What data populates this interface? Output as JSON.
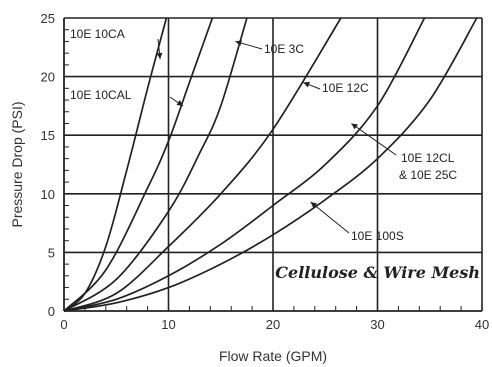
{
  "chart_data": {
    "type": "line",
    "title": "",
    "xlabel": "Flow Rate (GPM)",
    "ylabel": "Pressure Drop (PSI)",
    "xlim": [
      0,
      40
    ],
    "ylim": [
      0,
      25
    ],
    "xticks": [
      0,
      10,
      20,
      30,
      40
    ],
    "yticks": [
      0,
      5,
      10,
      15,
      20,
      25
    ],
    "grid": true,
    "annotation": "Cellulose & Wire Mesh",
    "series": [
      {
        "name": "10E 10CA",
        "x": [
          0,
          2,
          4,
          6,
          8,
          9.8
        ],
        "y": [
          0,
          1.5,
          5.5,
          12,
          19,
          25
        ]
      },
      {
        "name": "10E 10CAL",
        "x": [
          0,
          4,
          8,
          10,
          12,
          14.2
        ],
        "y": [
          0,
          3.5,
          10.5,
          14.5,
          19.5,
          25
        ]
      },
      {
        "name": "10E 3C",
        "x": [
          0,
          5,
          10,
          13,
          15,
          17.5
        ],
        "y": [
          0,
          2.7,
          8.5,
          13.5,
          17.5,
          25
        ]
      },
      {
        "name": "10E 12C",
        "x": [
          0,
          5,
          10,
          15,
          20,
          26.5
        ],
        "y": [
          0,
          1.5,
          5.5,
          10,
          15.5,
          25
        ]
      },
      {
        "name": "10E 12CL & 10E 25C",
        "x": [
          0,
          5,
          10,
          15,
          20,
          25,
          30,
          34.5
        ],
        "y": [
          0,
          1,
          3,
          5.7,
          9,
          12.5,
          17.5,
          25
        ]
      },
      {
        "name": "10E 100S",
        "x": [
          0,
          5,
          10,
          15,
          20,
          25,
          30,
          35,
          39.5
        ],
        "y": [
          0,
          0.7,
          2,
          4,
          6.5,
          9.5,
          13,
          18,
          25
        ]
      }
    ],
    "labels": [
      {
        "series": 0,
        "text": "10E 10CA",
        "pointer_at": [
          9.2,
          21.5
        ],
        "anchor": "right"
      },
      {
        "series": 1,
        "text": "10E 10CAL",
        "pointer_at": [
          11.4,
          17.5
        ],
        "anchor": "right"
      },
      {
        "series": 2,
        "text": "10E 3C",
        "pointer_at": [
          16.4,
          23.0
        ],
        "anchor": "left"
      },
      {
        "series": 3,
        "text": "10E 12C",
        "pointer_at": [
          22.9,
          19.5
        ],
        "anchor": "left"
      },
      {
        "series": 4,
        "text": "10E 12CL",
        "text2": "& 10E 25C",
        "pointer_at": [
          27.5,
          16.0
        ],
        "anchor": "left"
      },
      {
        "series": 5,
        "text": "10E 100S",
        "pointer_at": [
          23.6,
          9.3
        ],
        "anchor": "left"
      }
    ]
  }
}
